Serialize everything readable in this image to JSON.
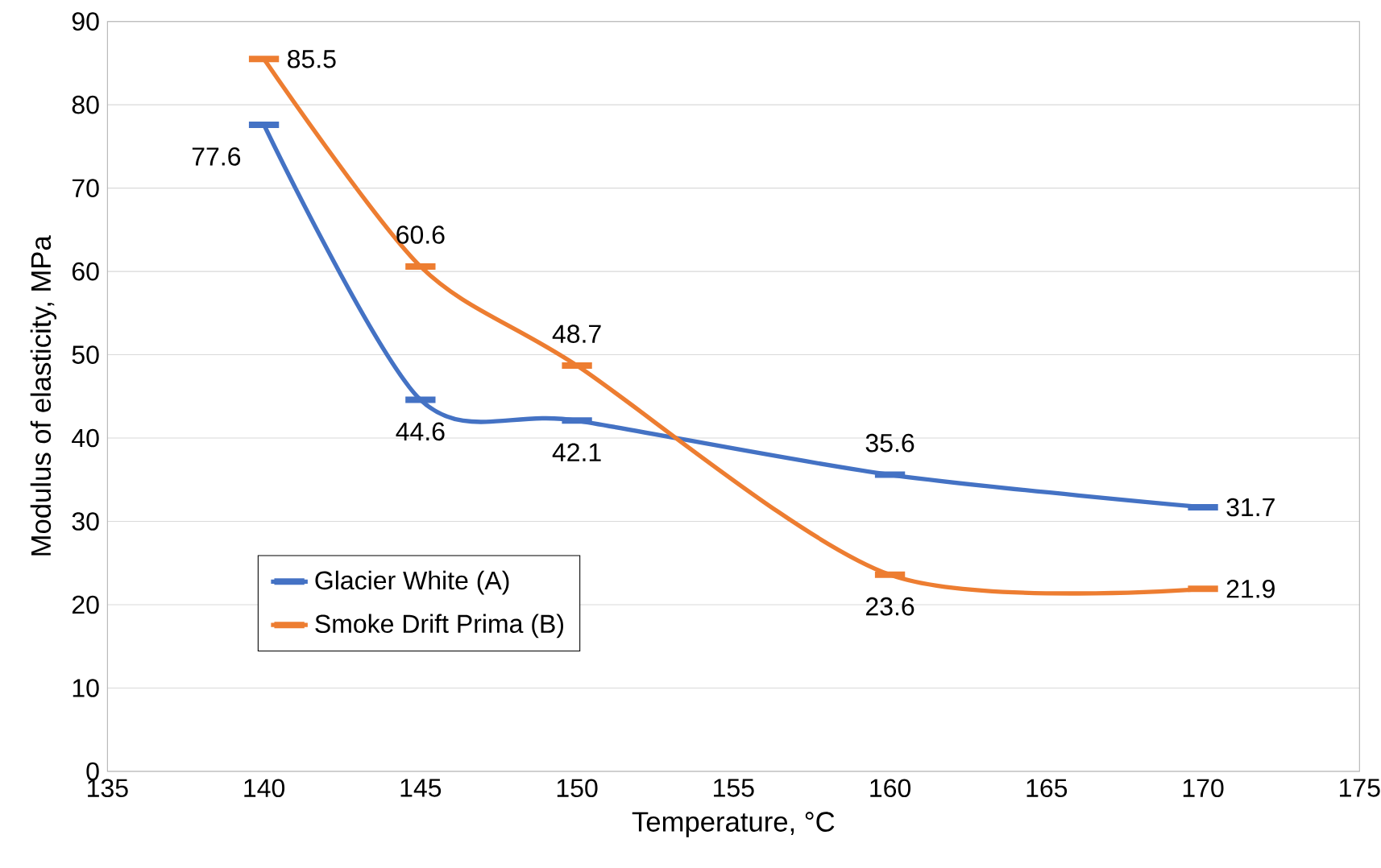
{
  "chart_data": {
    "type": "line",
    "xlabel": "Temperature, °C",
    "ylabel": "Modulus of elasticity, MPa",
    "x": [
      140,
      145,
      150,
      160,
      170
    ],
    "series": [
      {
        "name": "Glacier White (A)",
        "color": "#4472c4",
        "values": [
          77.6,
          44.6,
          42.1,
          35.6,
          31.7
        ]
      },
      {
        "name": "Smoke Drift Prima (B)",
        "color": "#ed7d31",
        "values": [
          85.5,
          60.6,
          48.7,
          23.6,
          21.9
        ]
      }
    ],
    "xlim": [
      135,
      175
    ],
    "xticks": [
      135,
      140,
      145,
      150,
      155,
      160,
      165,
      170,
      175
    ],
    "ylim": [
      0,
      90
    ],
    "yticks": [
      0,
      10,
      20,
      30,
      40,
      50,
      60,
      70,
      80,
      90
    ],
    "grid": "y",
    "legend": "bottom left",
    "data_labels": true,
    "line_style": "solid"
  }
}
